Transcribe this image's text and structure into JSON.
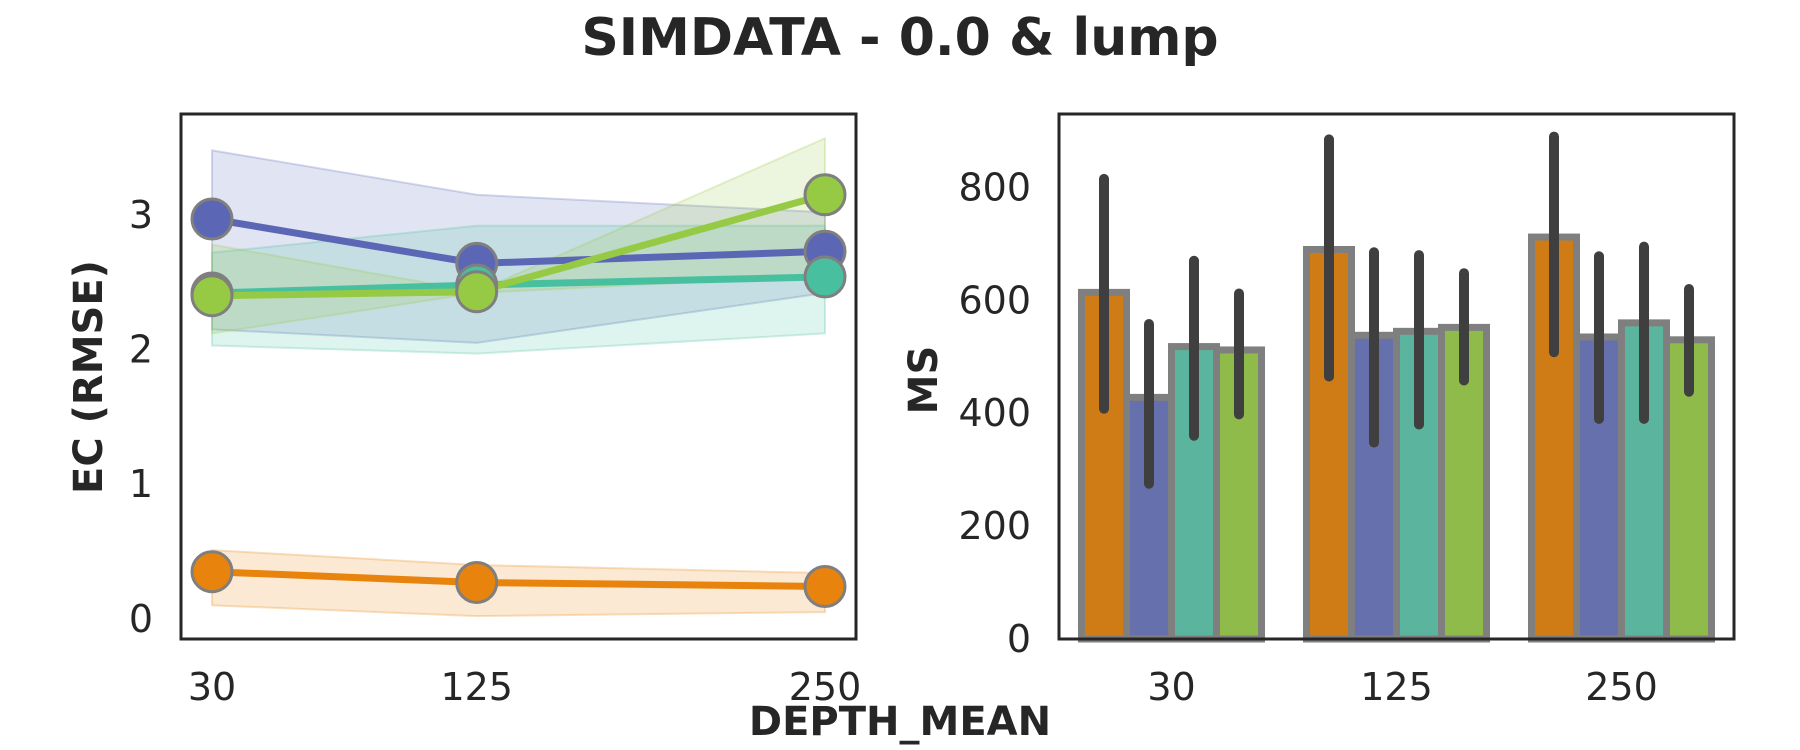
{
  "figure": {
    "title": "SIMDATA - 0.0 & lump",
    "shared_xlabel": "DEPTH_MEAN"
  },
  "chart_data": [
    {
      "type": "line",
      "ylabel": "EC (RMSE)",
      "x": [
        "30",
        "125",
        "250"
      ],
      "x_values": [
        30,
        125,
        250
      ],
      "xlim": [
        30,
        250
      ],
      "ylim": [
        -0.15,
        3.75
      ],
      "yticks": [
        0,
        1,
        2,
        3
      ],
      "grid": false,
      "series": [
        {
          "color": "#5b67b5",
          "values": [
            2.97,
            2.64,
            2.73
          ],
          "ci_low": [
            2.15,
            2.05,
            2.42
          ],
          "ci_high": [
            3.48,
            3.15,
            3.02
          ]
        },
        {
          "color": "#48c0a0",
          "values": [
            2.42,
            2.48,
            2.54
          ],
          "ci_low": [
            2.03,
            1.97,
            2.12
          ],
          "ci_high": [
            2.72,
            2.92,
            2.92
          ]
        },
        {
          "color": "#96ca45",
          "values": [
            2.4,
            2.43,
            3.15
          ],
          "ci_low": [
            2.12,
            2.42,
            2.55
          ],
          "ci_high": [
            2.78,
            2.43,
            3.57
          ]
        },
        {
          "color": "#e8830d",
          "values": [
            0.35,
            0.27,
            0.24
          ],
          "ci_low": [
            0.1,
            0.02,
            0.05
          ],
          "ci_high": [
            0.51,
            0.4,
            0.34
          ]
        }
      ]
    },
    {
      "type": "bar",
      "ylabel": "MS",
      "categories": [
        "30",
        "125",
        "250"
      ],
      "ylim": [
        0,
        930
      ],
      "yticks": [
        0,
        200,
        400,
        600,
        800
      ],
      "grid": false,
      "series": [
        {
          "color": "#d07c16",
          "values": [
            614,
            690,
            712
          ],
          "err_low": [
            408,
            465,
            508
          ],
          "err_high": [
            815,
            885,
            890
          ]
        },
        {
          "color": "#6670ad",
          "values": [
            428,
            538,
            535
          ],
          "err_low": [
            275,
            348,
            390
          ],
          "err_high": [
            558,
            685,
            678
          ]
        },
        {
          "color": "#5bb49d",
          "values": [
            518,
            545,
            560
          ],
          "err_low": [
            360,
            380,
            390
          ],
          "err_high": [
            670,
            680,
            695
          ]
        },
        {
          "color": "#8fbb4b",
          "values": [
            512,
            552,
            530
          ],
          "err_low": [
            398,
            458,
            438
          ],
          "err_high": [
            612,
            648,
            620
          ]
        }
      ]
    }
  ]
}
